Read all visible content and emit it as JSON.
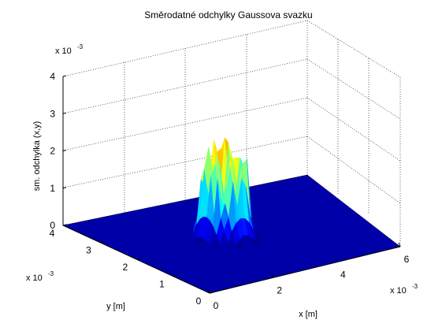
{
  "chart_data": {
    "type": "surface",
    "title": "Směrodatné odchylky Gaussova svazku",
    "xlabel": "x [m]",
    "ylabel": "y [m]",
    "zlabel": "sm. odchylka (x,y)",
    "x_multiplier": "x 10",
    "y_multiplier": "x 10",
    "z_multiplier": "x 10",
    "multiplier_exponent": "-3",
    "xlim": [
      0,
      6
    ],
    "ylim": [
      0,
      4
    ],
    "zlim": [
      0,
      4
    ],
    "x_ticks": [
      "0",
      "2",
      "4",
      "6"
    ],
    "y_ticks": [
      "0",
      "1",
      "2",
      "3",
      "4"
    ],
    "z_ticks": [
      "0",
      "1",
      "2",
      "3",
      "4"
    ],
    "grid": true,
    "colormap": "jet",
    "surface": {
      "description_values": "noisy plateau of std. deviation near the beam center, zero elsewhere",
      "center_x": 2.9,
      "center_y": 2.1,
      "plateau_half_width_x": 0.55,
      "plateau_half_width_y": 0.45,
      "plateau_level": 1.2,
      "max_peak": 2.7
    }
  }
}
